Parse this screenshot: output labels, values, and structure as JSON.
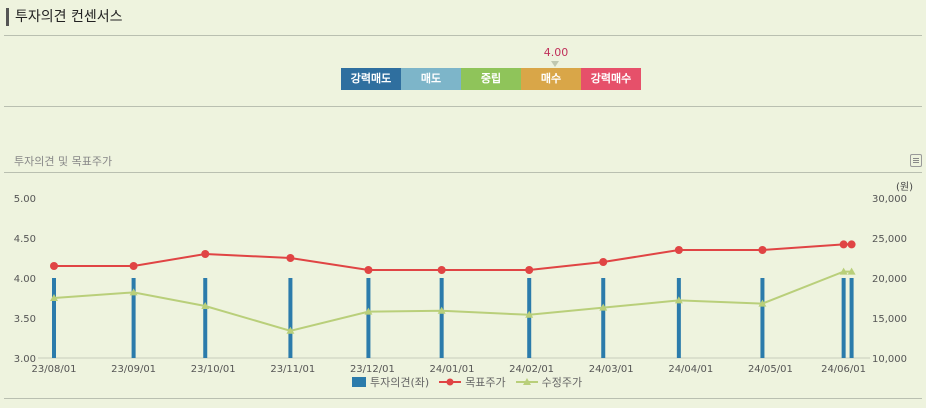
{
  "header": {
    "title": "투자의견 컨센서스"
  },
  "consensus": {
    "segments": [
      {
        "label": "강력매도",
        "color": "#2f6f9f"
      },
      {
        "label": "매도",
        "color": "#7db5c9"
      },
      {
        "label": "중립",
        "color": "#8fc45a"
      },
      {
        "label": "매수",
        "color": "#d9a648"
      },
      {
        "label": "강력매수",
        "color": "#e6506a"
      }
    ],
    "value": "4.00"
  },
  "chart_section": {
    "title": "투자의견 및 목표주가"
  },
  "chart_data": {
    "type": "bar+line",
    "x_labels": [
      "23/08/01",
      "23/09/01",
      "23/10/01",
      "23/11/01",
      "23/12/01",
      "24/01/01",
      "24/02/01",
      "24/03/01",
      "24/04/01",
      "24/05/01",
      "24/06/01"
    ],
    "right_axis_unit": "(원)",
    "left_axis": {
      "range": [
        3.0,
        5.0
      ],
      "ticks": [
        "5.00",
        "4.50",
        "4.00",
        "3.50",
        "3.00"
      ]
    },
    "right_axis": {
      "range": [
        10000,
        30000
      ],
      "ticks": [
        "30,000",
        "25,000",
        "20,000",
        "15,000",
        "10,000"
      ]
    },
    "bars": {
      "name": "투자의견(좌)",
      "color": "#2b7bab",
      "points": [
        {
          "x": 0.0,
          "v": 4.0
        },
        {
          "x": 1.0,
          "v": 4.0
        },
        {
          "x": 1.9,
          "v": 4.0
        },
        {
          "x": 2.97,
          "v": 4.0
        },
        {
          "x": 3.95,
          "v": 4.0
        },
        {
          "x": 4.87,
          "v": 4.0
        },
        {
          "x": 5.97,
          "v": 4.0
        },
        {
          "x": 6.9,
          "v": 4.0
        },
        {
          "x": 7.85,
          "v": 4.0
        },
        {
          "x": 8.9,
          "v": 4.0
        },
        {
          "x": 9.92,
          "v": 4.0
        },
        {
          "x": 10.02,
          "v": 4.0
        }
      ]
    },
    "target_price": {
      "name": "목표주가",
      "color": "#e04444",
      "points": [
        {
          "x": 0.0,
          "v": 21500
        },
        {
          "x": 1.0,
          "v": 21500
        },
        {
          "x": 1.9,
          "v": 23000
        },
        {
          "x": 2.97,
          "v": 22500
        },
        {
          "x": 3.95,
          "v": 21000
        },
        {
          "x": 4.87,
          "v": 21000
        },
        {
          "x": 5.97,
          "v": 21000
        },
        {
          "x": 6.9,
          "v": 22000
        },
        {
          "x": 7.85,
          "v": 23500
        },
        {
          "x": 8.9,
          "v": 23500
        },
        {
          "x": 9.92,
          "v": 24200
        },
        {
          "x": 10.02,
          "v": 24200
        }
      ]
    },
    "adjusted_price": {
      "name": "수정주가",
      "color": "#b9cf7a",
      "points": [
        {
          "x": 0.0,
          "v": 17500
        },
        {
          "x": 1.0,
          "v": 18200
        },
        {
          "x": 1.9,
          "v": 16500
        },
        {
          "x": 2.97,
          "v": 13400
        },
        {
          "x": 3.95,
          "v": 15800
        },
        {
          "x": 4.87,
          "v": 15900
        },
        {
          "x": 5.97,
          "v": 15400
        },
        {
          "x": 6.9,
          "v": 16300
        },
        {
          "x": 7.85,
          "v": 17200
        },
        {
          "x": 8.9,
          "v": 16800
        },
        {
          "x": 9.92,
          "v": 20800
        },
        {
          "x": 10.02,
          "v": 20800
        }
      ]
    }
  }
}
